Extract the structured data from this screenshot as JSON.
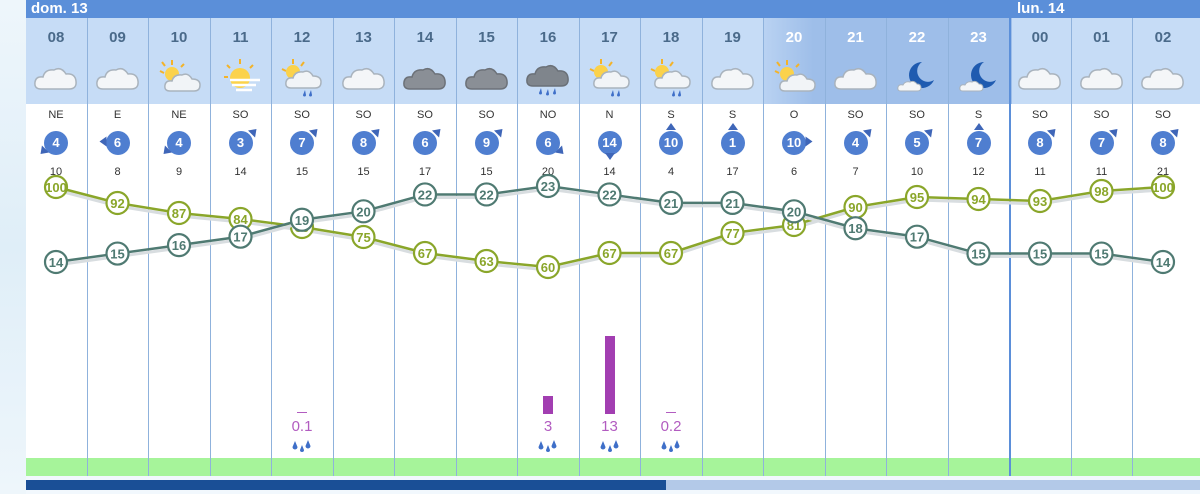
{
  "days": [
    {
      "label": "dom. 13"
    },
    {
      "label": "lun. 14"
    }
  ],
  "hours": [
    {
      "hour": "08",
      "icon": "cloud-icon",
      "dir": "NE",
      "wind": "4",
      "arrow": "down-left",
      "gust": "10",
      "humidity": 100,
      "temp": 14,
      "rain": ""
    },
    {
      "hour": "09",
      "icon": "cloud-icon",
      "dir": "E",
      "wind": "6",
      "arrow": "left",
      "gust": "8",
      "humidity": 92,
      "temp": 15,
      "rain": ""
    },
    {
      "hour": "10",
      "icon": "sun-cloud-icon",
      "dir": "NE",
      "wind": "4",
      "arrow": "down-left",
      "gust": "9",
      "humidity": 87,
      "temp": 16,
      "rain": ""
    },
    {
      "hour": "11",
      "icon": "hazy-sun-icon",
      "dir": "SO",
      "wind": "3",
      "arrow": "up-right",
      "gust": "14",
      "humidity": 84,
      "temp": 17,
      "rain": ""
    },
    {
      "hour": "12",
      "icon": "sun-cloud-rain-icon",
      "dir": "SO",
      "wind": "7",
      "arrow": "up-right",
      "gust": "15",
      "humidity": 80,
      "temp": 19,
      "rain": "0.1"
    },
    {
      "hour": "13",
      "icon": "cloud-icon",
      "dir": "SO",
      "wind": "8",
      "arrow": "up-right",
      "gust": "15",
      "humidity": 75,
      "temp": 20,
      "rain": ""
    },
    {
      "hour": "14",
      "icon": "dark-cloud-icon",
      "dir": "SO",
      "wind": "6",
      "arrow": "up-right",
      "gust": "17",
      "humidity": 67,
      "temp": 22,
      "rain": ""
    },
    {
      "hour": "15",
      "icon": "dark-cloud-icon",
      "dir": "SO",
      "wind": "9",
      "arrow": "up-right",
      "gust": "15",
      "humidity": 63,
      "temp": 22,
      "rain": ""
    },
    {
      "hour": "16",
      "icon": "storm-cloud-rain-icon",
      "dir": "NO",
      "wind": "6",
      "arrow": "down-right",
      "gust": "20",
      "humidity": 60,
      "temp": 23,
      "rain": "3"
    },
    {
      "hour": "17",
      "icon": "sun-cloud-rain-icon",
      "dir": "N",
      "wind": "14",
      "arrow": "down",
      "gust": "14",
      "humidity": 67,
      "temp": 22,
      "rain": "13"
    },
    {
      "hour": "18",
      "icon": "sun-cloud-rain-icon",
      "dir": "S",
      "wind": "10",
      "arrow": "up",
      "gust": "4",
      "humidity": 67,
      "temp": 21,
      "rain": "0.2"
    },
    {
      "hour": "19",
      "icon": "cloud-icon",
      "dir": "S",
      "wind": "1",
      "arrow": "up",
      "gust": "17",
      "humidity": 77,
      "temp": 21,
      "rain": ""
    },
    {
      "hour": "20",
      "icon": "sun-cloud-icon",
      "dir": "O",
      "wind": "10",
      "arrow": "right",
      "gust": "6",
      "humidity": 81,
      "temp": 20,
      "rain": ""
    },
    {
      "hour": "21",
      "icon": "cloud-icon",
      "dir": "SO",
      "wind": "4",
      "arrow": "up-right",
      "gust": "7",
      "humidity": 90,
      "temp": 18,
      "rain": ""
    },
    {
      "hour": "22",
      "icon": "moon-icon",
      "dir": "SO",
      "wind": "5",
      "arrow": "up-right",
      "gust": "10",
      "humidity": 95,
      "temp": 17,
      "rain": ""
    },
    {
      "hour": "23",
      "icon": "moon-icon",
      "dir": "S",
      "wind": "7",
      "arrow": "up",
      "gust": "12",
      "humidity": 94,
      "temp": 15,
      "rain": ""
    },
    {
      "hour": "00",
      "icon": "cloud-icon",
      "dir": "SO",
      "wind": "8",
      "arrow": "up-right",
      "gust": "11",
      "humidity": 93,
      "temp": 15,
      "rain": ""
    },
    {
      "hour": "01",
      "icon": "cloud-icon",
      "dir": "SO",
      "wind": "7",
      "arrow": "up-right",
      "gust": "11",
      "humidity": 98,
      "temp": 15,
      "rain": ""
    },
    {
      "hour": "02",
      "icon": "cloud-icon",
      "dir": "SO",
      "wind": "8",
      "arrow": "up-right",
      "gust": "21",
      "humidity": 100,
      "temp": 14,
      "rain": ""
    }
  ],
  "colors": {
    "temp_line": "#4f7a72",
    "humidity_line": "#8aa62a",
    "rain_bar": "#a23eb1",
    "accent": "#5b8fd9"
  }
}
